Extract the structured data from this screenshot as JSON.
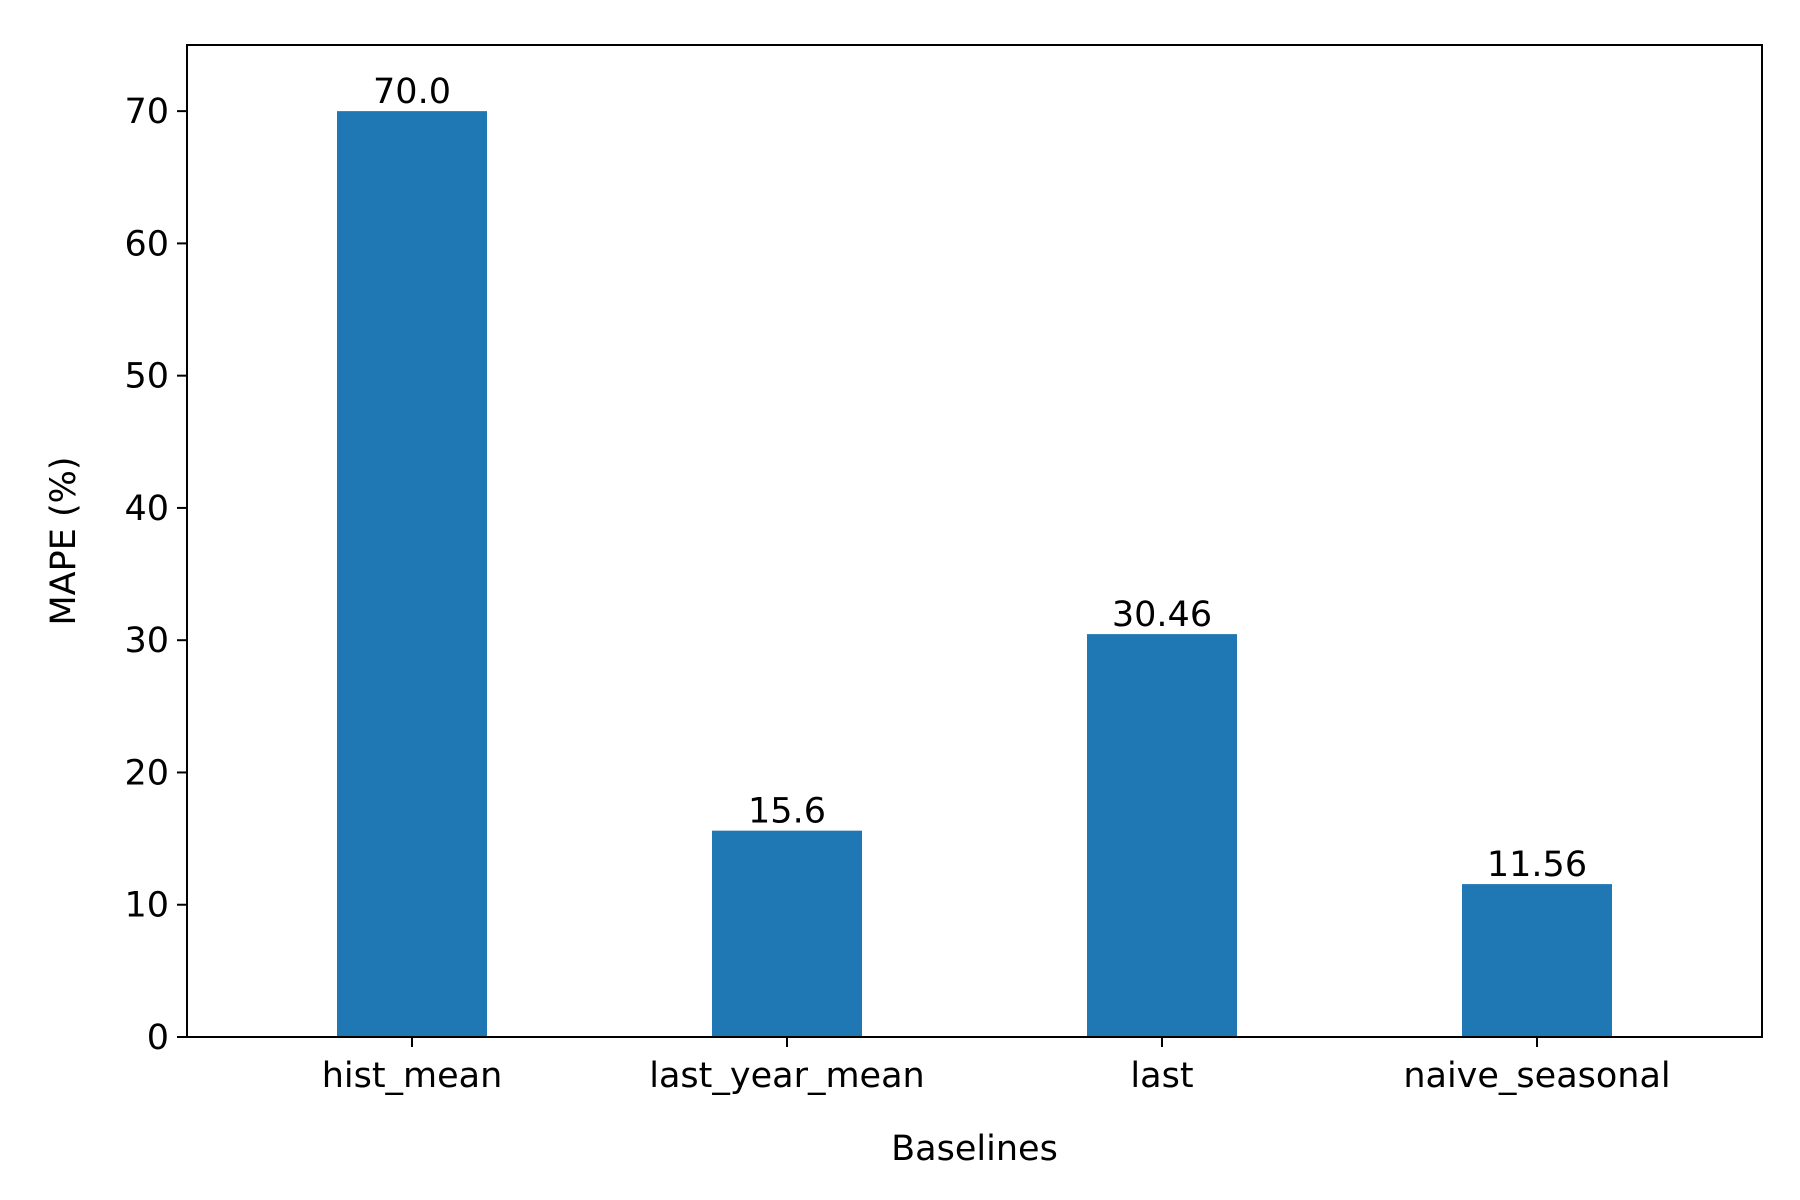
{
  "chart_data": {
    "type": "bar",
    "title": "",
    "xlabel": "Baselines",
    "ylabel": "MAPE (%)",
    "categories": [
      "hist_mean",
      "last_year_mean",
      "last",
      "naive_seasonal"
    ],
    "values": [
      70.0,
      15.6,
      30.46,
      11.56
    ],
    "value_labels": [
      "70.0",
      "15.6",
      "30.46",
      "11.56"
    ],
    "ylim": [
      0,
      75
    ],
    "yticks": [
      0,
      10,
      20,
      30,
      40,
      50,
      60,
      70
    ],
    "grid": false,
    "legend": "none",
    "bar_color": "#1f77b4"
  }
}
